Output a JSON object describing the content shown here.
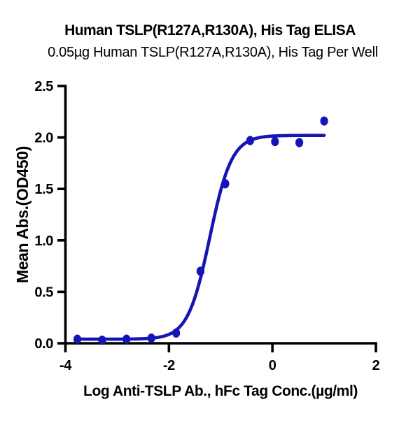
{
  "chart_data": {
    "type": "scatter",
    "title": "Human TSLP(R127A,R130A), His Tag ELISA",
    "subtitle": "0.05µg Human TSLP(R127A,R130A), His Tag Per Well",
    "xlabel": "Log Anti-TSLP Ab., hFc Tag Conc.(µg/ml)",
    "ylabel": "Mean Abs.(OD450)",
    "xlim": [
      -4,
      2
    ],
    "ylim": [
      0,
      2.5
    ],
    "x_ticks": {
      "values": [
        -4,
        -2,
        0,
        2
      ],
      "labels": [
        "-4",
        "-2",
        "0",
        "2"
      ]
    },
    "y_ticks": {
      "values": [
        0,
        0.5,
        1,
        1.5,
        2,
        2.5
      ],
      "labels": [
        "0.0",
        "0.5",
        "1.0",
        "1.5",
        "2.0",
        "2.5"
      ]
    },
    "grid": false,
    "legend": false,
    "series": [
      {
        "name": "Anti-TSLP Ab., hFc Tag",
        "color": "#1515b5",
        "marker": "ellipse",
        "x": [
          -3.77,
          -3.29,
          -2.82,
          -2.34,
          -1.86,
          -1.39,
          -0.91,
          -0.43,
          0.05,
          0.52,
          1.0
        ],
        "y": [
          0.04,
          0.03,
          0.04,
          0.05,
          0.1,
          0.7,
          1.55,
          1.97,
          1.96,
          1.95,
          2.16
        ]
      }
    ],
    "fit_curve": {
      "model": "4PL sigmoidal dose-response",
      "bottom": 0.04,
      "top": 2.02,
      "log_ec50": -1.21,
      "hill_slope": 2.05,
      "x_start": -3.77,
      "x_end": 1.0,
      "color": "#1515b5"
    },
    "axis_color": "#000000",
    "text_color": "#000000",
    "background": "#ffffff"
  }
}
